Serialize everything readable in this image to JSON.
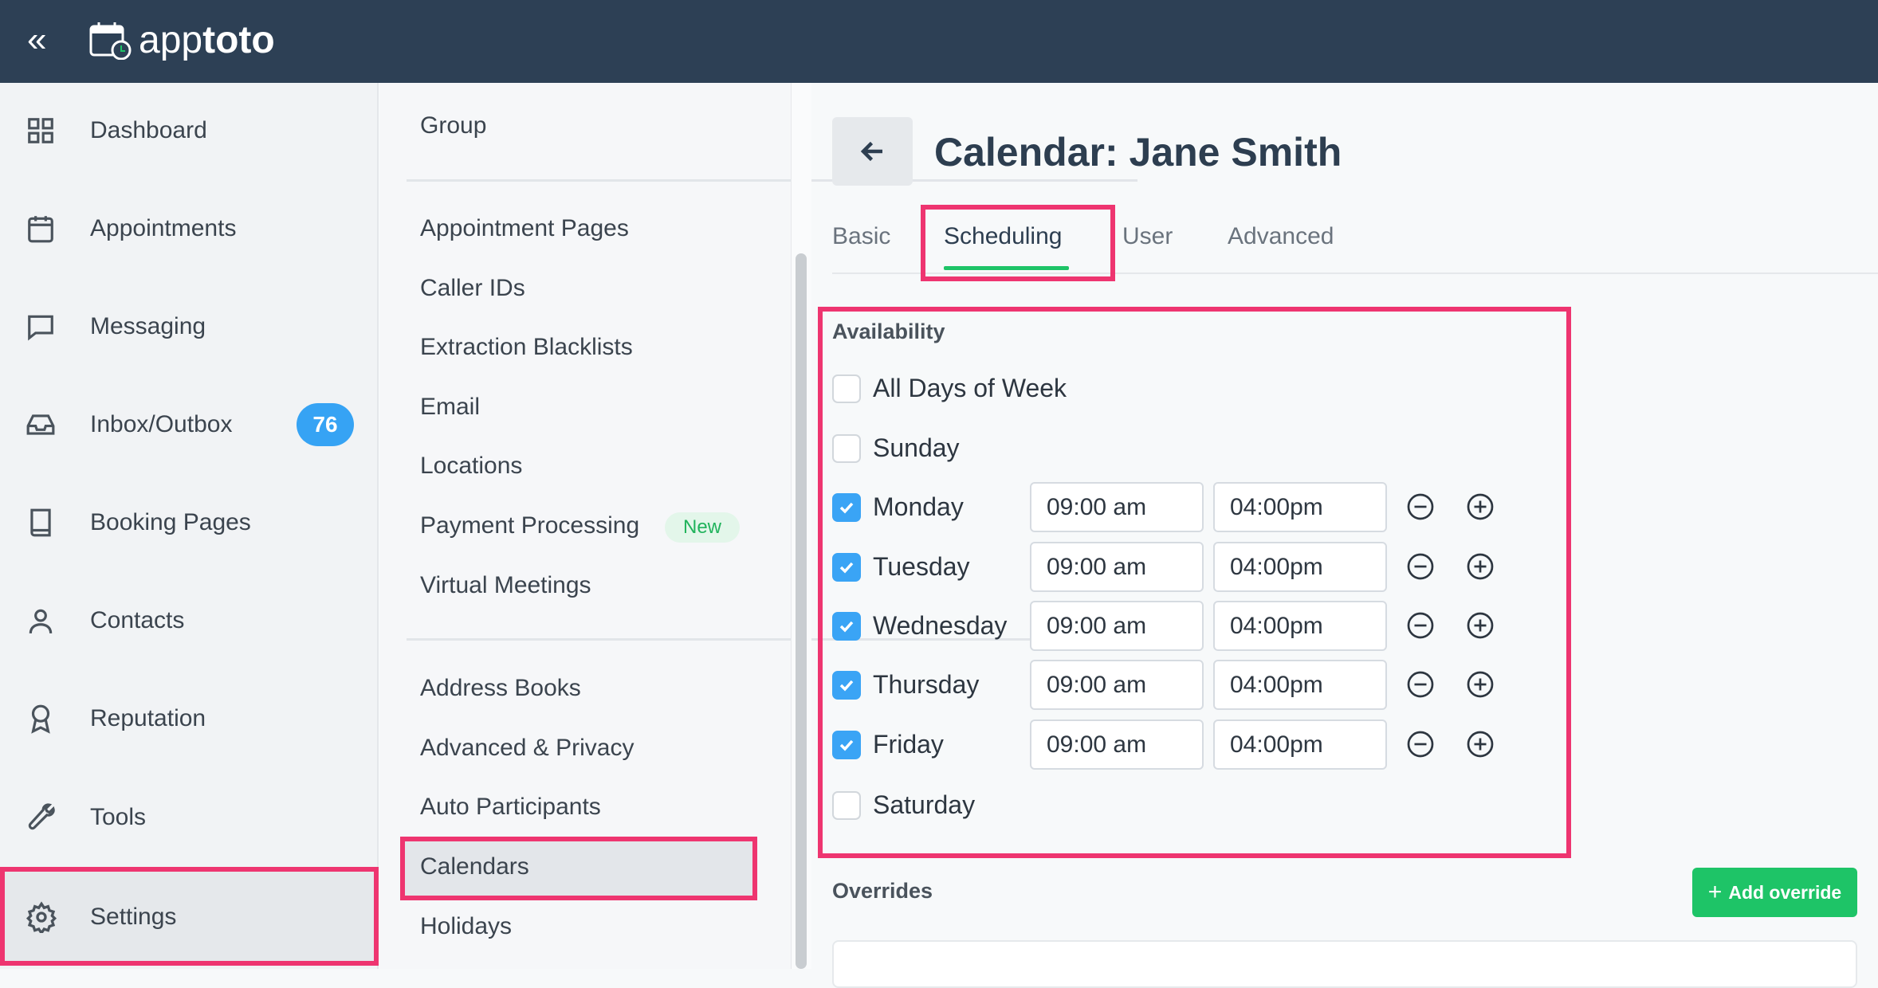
{
  "header": {
    "logo_regular": "app",
    "logo_bold": "toto",
    "collapse_icon": "double-chevron-left-icon"
  },
  "sidebar": {
    "items": [
      {
        "label": "Dashboard",
        "icon": "grid-icon"
      },
      {
        "label": "Appointments",
        "icon": "calendar-icon"
      },
      {
        "label": "Messaging",
        "icon": "chat-icon"
      },
      {
        "label": "Inbox/Outbox",
        "icon": "inbox-icon",
        "badge": "76"
      },
      {
        "label": "Booking Pages",
        "icon": "book-icon"
      },
      {
        "label": "Contacts",
        "icon": "user-icon"
      },
      {
        "label": "Reputation",
        "icon": "award-icon"
      },
      {
        "label": "Tools",
        "icon": "wrench-icon"
      },
      {
        "label": "Settings",
        "icon": "gear-icon",
        "active": true
      }
    ]
  },
  "subnav": {
    "group": "Group",
    "section1": [
      "Appointment Pages",
      "Caller IDs",
      "Extraction Blacklists",
      "Email",
      "Locations",
      "Payment Processing",
      "Virtual Meetings"
    ],
    "new_badge": "New",
    "section2": [
      "Address Books",
      "Advanced & Privacy",
      "Auto Participants",
      "Calendars",
      "Holidays"
    ],
    "active": "Calendars"
  },
  "main": {
    "title": "Calendar: Jane Smith",
    "tabs": [
      "Basic",
      "Scheduling",
      "User",
      "Advanced"
    ],
    "active_tab": "Scheduling",
    "availability": {
      "label": "Availability",
      "all_days": {
        "label": "All Days of Week",
        "checked": false
      },
      "days": [
        {
          "label": "Sunday",
          "checked": false
        },
        {
          "label": "Monday",
          "checked": true,
          "start": "09:00 am",
          "end": "04:00pm"
        },
        {
          "label": "Tuesday",
          "checked": true,
          "start": "09:00 am",
          "end": "04:00pm"
        },
        {
          "label": "Wednesday",
          "checked": true,
          "start": "09:00 am",
          "end": "04:00pm"
        },
        {
          "label": "Thursday",
          "checked": true,
          "start": "09:00 am",
          "end": "04:00pm"
        },
        {
          "label": "Friday",
          "checked": true,
          "start": "09:00 am",
          "end": "04:00pm"
        },
        {
          "label": "Saturday",
          "checked": false
        }
      ]
    },
    "overrides": {
      "label": "Overrides",
      "add_button": "Add override"
    }
  },
  "colors": {
    "header": "#2d4055",
    "highlight": "#ee3570",
    "accent_green": "#1ec467",
    "checkbox_blue": "#3aa4f5",
    "badge_blue": "#36a3f4"
  }
}
